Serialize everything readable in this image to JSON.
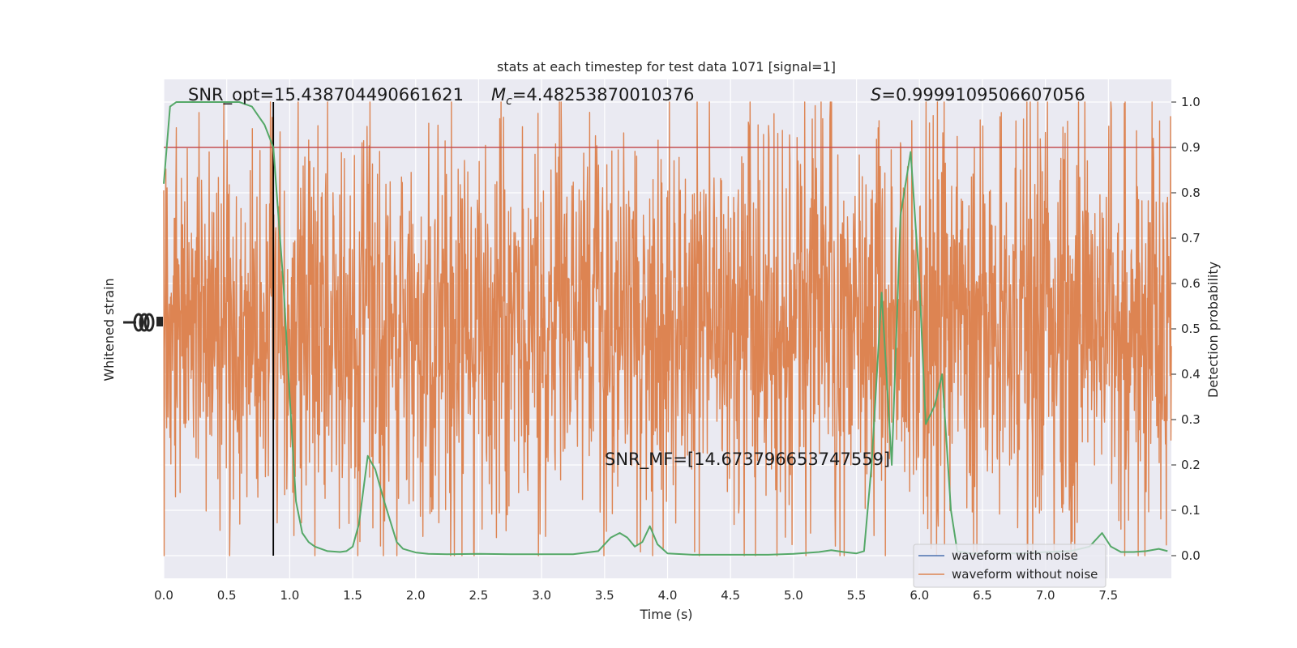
{
  "chart_data": {
    "type": "line",
    "title": "stats at each timestep for test data 1071 [signal=1]",
    "xlabel": "Time (s)",
    "ylabel_left": "Whitened strain",
    "ylabel_right": "Detection probability",
    "xlim": [
      0,
      8
    ],
    "ylim_right": [
      -0.05,
      1.05
    ],
    "xticks": [
      "0.0",
      "0.5",
      "1.0",
      "1.5",
      "2.0",
      "2.5",
      "3.0",
      "3.5",
      "4.0",
      "4.5",
      "5.0",
      "5.5",
      "6.0",
      "6.5",
      "7.0",
      "7.5"
    ],
    "yticks_right": [
      "0.0",
      "0.1",
      "0.2",
      "0.3",
      "0.4",
      "0.5",
      "0.6",
      "0.7",
      "0.8",
      "0.9",
      "1.0"
    ],
    "grid": true,
    "annotations": {
      "snr_opt": "SNR_opt=15.438704490661621",
      "mc_symbol": "M",
      "mc_sub": "c",
      "mc_value": "=4.48253870010376",
      "s_symbol": "S",
      "s_value": "=0.9999109506607056",
      "snr_mf": "SNR_MF=[14.673796653747559]"
    },
    "threshold": 0.9,
    "vline_time": 0.87,
    "legend": {
      "placement": "bottom-right",
      "entries": [
        "waveform with noise",
        "waveform without noise"
      ]
    },
    "series": [
      {
        "name": "waveform with noise",
        "color": "#4c72b0",
        "kind": "strain"
      },
      {
        "name": "waveform without noise",
        "color": "#dd8452",
        "kind": "strain"
      },
      {
        "color": "#55a868",
        "kind": "detection_probability",
        "x": [
          0.0,
          0.05,
          0.1,
          0.2,
          0.3,
          0.4,
          0.5,
          0.6,
          0.7,
          0.75,
          0.8,
          0.87,
          0.95,
          1.0,
          1.05,
          1.1,
          1.15,
          1.2,
          1.3,
          1.4,
          1.45,
          1.5,
          1.55,
          1.62,
          1.68,
          1.75,
          1.85,
          1.9,
          2.0,
          2.1,
          2.25,
          2.5,
          2.75,
          3.0,
          3.25,
          3.45,
          3.55,
          3.62,
          3.68,
          3.74,
          3.8,
          3.86,
          3.92,
          4.0,
          4.2,
          4.5,
          4.8,
          5.0,
          5.1,
          5.2,
          5.3,
          5.4,
          5.5,
          5.56,
          5.62,
          5.7,
          5.78,
          5.85,
          5.93,
          6.0,
          6.05,
          6.12,
          6.18,
          6.25,
          6.3,
          6.4,
          6.6,
          6.8,
          7.0,
          7.2,
          7.35,
          7.45,
          7.52,
          7.6,
          7.7,
          7.8,
          7.9,
          7.97
        ],
        "y": [
          0.82,
          0.99,
          1.0,
          1.0,
          1.0,
          1.0,
          1.0,
          1.0,
          0.99,
          0.97,
          0.95,
          0.9,
          0.6,
          0.35,
          0.12,
          0.05,
          0.03,
          0.02,
          0.01,
          0.008,
          0.01,
          0.02,
          0.07,
          0.22,
          0.19,
          0.12,
          0.03,
          0.015,
          0.007,
          0.004,
          0.003,
          0.004,
          0.003,
          0.003,
          0.003,
          0.01,
          0.04,
          0.05,
          0.04,
          0.02,
          0.03,
          0.065,
          0.025,
          0.005,
          0.002,
          0.002,
          0.002,
          0.004,
          0.006,
          0.008,
          0.012,
          0.008,
          0.005,
          0.01,
          0.2,
          0.58,
          0.2,
          0.75,
          0.89,
          0.6,
          0.29,
          0.33,
          0.4,
          0.1,
          0.01,
          0.005,
          0.005,
          0.005,
          0.008,
          0.01,
          0.02,
          0.05,
          0.02,
          0.008,
          0.008,
          0.01,
          0.015,
          0.01
        ]
      }
    ]
  }
}
